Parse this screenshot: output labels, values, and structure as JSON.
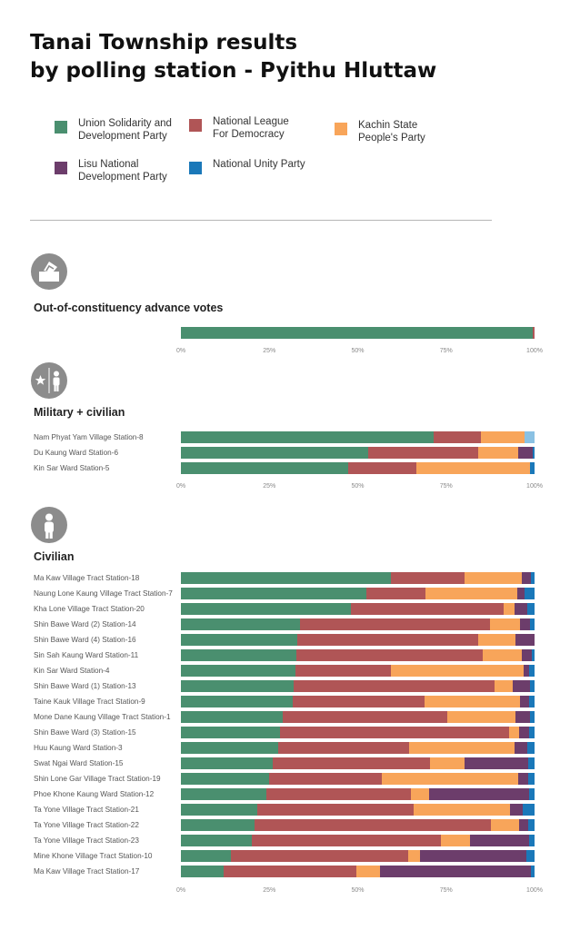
{
  "title_lines": [
    "Tanai Township results",
    "by polling station - Pyithu Hluttaw"
  ],
  "legend": [
    {
      "label": "Union Solidarity and Development Party",
      "color": "#4a8f6f"
    },
    {
      "label": "National League For Democracy",
      "color": "#b05556"
    },
    {
      "label": "Kachin State People's Party",
      "color": "#f8a55a"
    },
    {
      "label": "Lisu National Development Party",
      "color": "#6c3d6b"
    },
    {
      "label": "National Unity Party",
      "color": "#1a78b9"
    }
  ],
  "sections": {
    "advance": {
      "title": "Out-of-constituency advance votes",
      "icon": "ballot-box-icon"
    },
    "military": {
      "title": "Military + civilian",
      "icon": "military-civilian-icon"
    },
    "civilian": {
      "title": "Civilian",
      "icon": "person-icon"
    }
  },
  "chart_data": [
    {
      "type": "bar",
      "orientation": "horizontal",
      "stacked": true,
      "title": "Out-of-constituency advance votes",
      "xlim": [
        0,
        100
      ],
      "x_ticks": [
        "0%",
        "25%",
        "50%",
        "75%",
        "100%"
      ],
      "categories": [
        ""
      ],
      "series": [
        {
          "name": "Union Solidarity and Development Party",
          "values": [
            99.5
          ]
        },
        {
          "name": "National League For Democracy",
          "values": [
            0.5
          ]
        },
        {
          "name": "Kachin State People's Party",
          "values": [
            0
          ]
        },
        {
          "name": "Lisu National Development Party",
          "values": [
            0
          ]
        },
        {
          "name": "National Unity Party",
          "values": [
            0
          ]
        },
        {
          "name": "",
          "color": "#8ac1e3",
          "values": [
            0
          ]
        }
      ]
    },
    {
      "type": "bar",
      "orientation": "horizontal",
      "stacked": true,
      "title": "Military + civilian",
      "xlim": [
        0,
        100
      ],
      "x_ticks": [
        "0%",
        "25%",
        "50%",
        "75%",
        "100%"
      ],
      "categories": [
        "Nam Phyat Yam Village Station-8",
        "Du Kaung Ward Station-6",
        "Kin Sar Ward Station-5"
      ],
      "series": [
        {
          "name": "Union Solidarity and Development Party",
          "values": [
            71.5,
            52.9,
            47.3
          ]
        },
        {
          "name": "National League For Democracy",
          "values": [
            13.4,
            31.2,
            19.4
          ]
        },
        {
          "name": "Kachin State People's Party",
          "values": [
            12.3,
            11.2,
            31.9
          ]
        },
        {
          "name": "Lisu National Development Party",
          "values": [
            0,
            4.1,
            0
          ]
        },
        {
          "name": "National Unity Party",
          "values": [
            0,
            0.6,
            1.4
          ]
        },
        {
          "name": "",
          "color": "#8ac1e3",
          "values": [
            2.8,
            0,
            0
          ]
        }
      ]
    },
    {
      "type": "bar",
      "orientation": "horizontal",
      "stacked": true,
      "title": "Civilian",
      "xlim": [
        0,
        100
      ],
      "x_ticks": [
        "0%",
        "25%",
        "50%",
        "75%",
        "100%"
      ],
      "categories": [
        "Ma Kaw Village Tract Station-18",
        "Naung Lone Kaung Village Tract Station-7",
        "Kha Lone Village Tract Station-20",
        "Shin Bawe Ward (2) Station-14",
        "Shin Bawe Ward (4) Station-16",
        "Sin Sah Kaung Ward Station-11",
        "Kin Sar Ward Station-4",
        "Shin Bawe Ward (1) Station-13",
        "Taine Kauk Village Tract Station-9",
        "Mone Dane Kaung Village Tract Station-1",
        "Shin Bawe Ward (3) Station-15",
        "Huu Kaung Ward Station-3",
        "Swat Ngai Ward Station-15",
        "Shin Lone Gar Village Tract Station-19",
        "Phoe Khone Kaung Ward Station-12",
        "Ta Yone Village Tract Station-21",
        "Ta Yone Village Tract Station-22",
        "Ta Yone Village Tract Station-23",
        "Mine Khone Village Tract Station-10",
        "Ma Kaw Village Tract Station-17"
      ],
      "series": [
        {
          "name": "Union Solidarity and Development Party",
          "values": [
            59.3,
            52.4,
            48.1,
            33.7,
            32.9,
            32.6,
            32.4,
            31.9,
            31.6,
            28.8,
            28.1,
            27.4,
            26.0,
            24.9,
            24.2,
            21.6,
            20.8,
            20.0,
            14.1,
            12.0
          ]
        },
        {
          "name": "National League For Democracy",
          "values": [
            20.8,
            16.7,
            43.2,
            53.6,
            51.2,
            52.7,
            27.0,
            56.8,
            37.3,
            46.5,
            64.8,
            37.0,
            44.5,
            31.9,
            40.9,
            44.2,
            66.8,
            53.6,
            50.1,
            37.5
          ]
        },
        {
          "name": "Kachin State People's Party",
          "values": [
            16.2,
            25.9,
            3.1,
            8.6,
            10.6,
            11.0,
            37.6,
            5.1,
            26.9,
            19.3,
            2.8,
            29.9,
            9.6,
            38.6,
            5.1,
            27.3,
            8.0,
            8.2,
            3.3,
            6.7
          ]
        },
        {
          "name": "Lisu National Development Party",
          "values": [
            2.6,
            2.3,
            3.5,
            2.7,
            5.3,
            2.9,
            1.5,
            4.9,
            2.6,
            4.1,
            2.8,
            3.6,
            18.1,
            2.9,
            28.2,
            3.5,
            2.6,
            16.6,
            30.1,
            42.9
          ]
        },
        {
          "name": "National Unity Party",
          "values": [
            1.1,
            2.7,
            2.1,
            1.4,
            0,
            0.8,
            1.5,
            1.3,
            1.6,
            1.3,
            1.5,
            2.1,
            1.8,
            1.7,
            1.6,
            3.4,
            1.8,
            1.6,
            2.4,
            0.9
          ]
        },
        {
          "name": "",
          "color": "#8ac1e3",
          "values": [
            0,
            0,
            0,
            0,
            0,
            0,
            0,
            0,
            0,
            0,
            0,
            0,
            0,
            0,
            0,
            0,
            0,
            0,
            0,
            0
          ]
        }
      ]
    }
  ]
}
